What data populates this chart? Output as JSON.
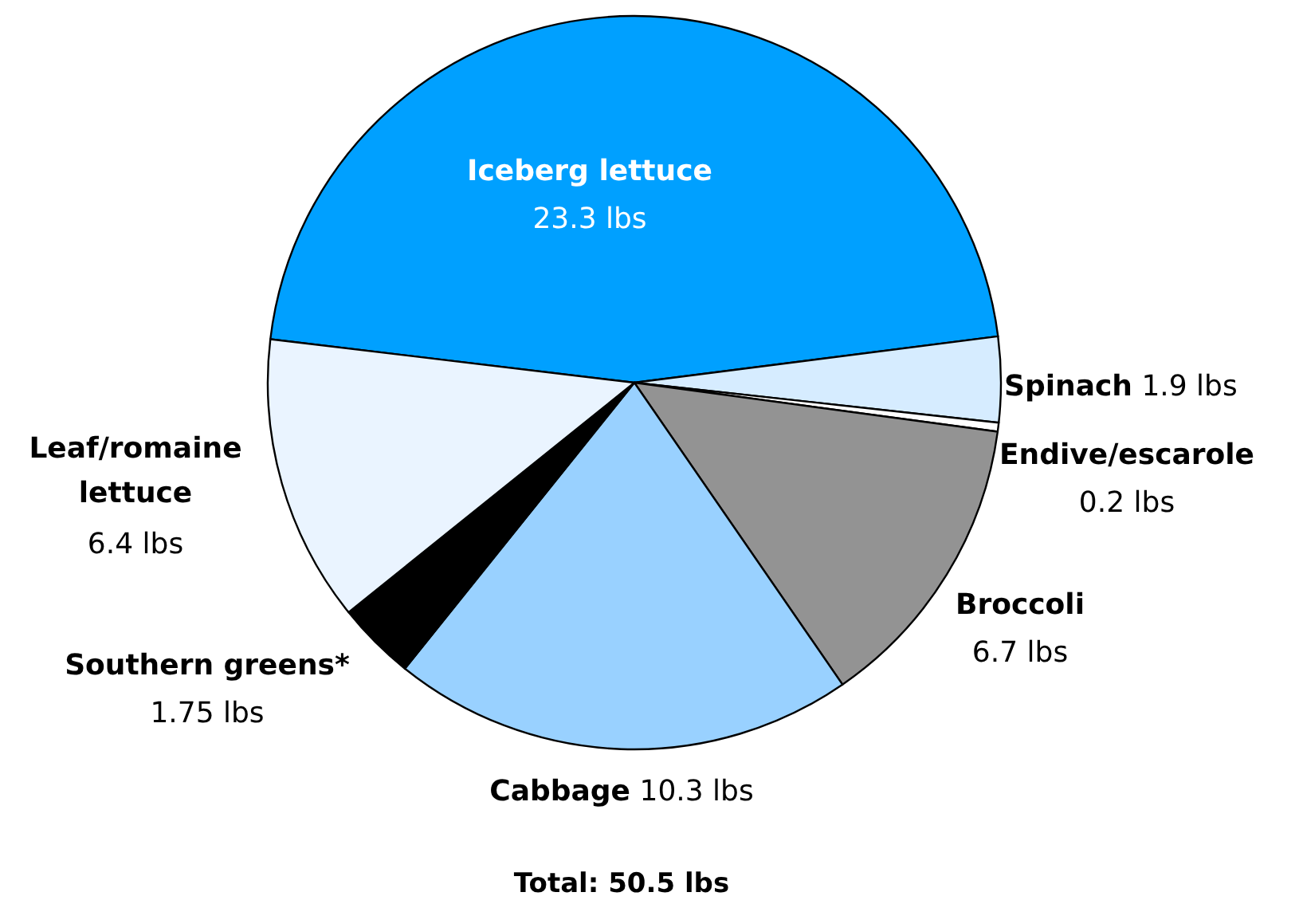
{
  "chart_data": {
    "type": "pie",
    "categories": [
      "Iceberg lettuce",
      "Spinach",
      "Endive/escarole",
      "Broccoli",
      "Cabbage",
      "Southern greens*",
      "Leaf/romaine lettuce"
    ],
    "values": [
      23.3,
      1.9,
      0.2,
      6.7,
      10.3,
      1.75,
      6.4
    ],
    "value_labels": [
      "23.3 lbs",
      "1.9 lbs",
      "0.2 lbs",
      "6.7 lbs",
      "10.3 lbs",
      "1.75 lbs",
      "6.4 lbs"
    ],
    "colors": [
      "#00a0ff",
      "#d6ecff",
      "#ffffff",
      "#939393",
      "#99d1ff",
      "#000000",
      "#eaf4ff"
    ],
    "annotations": [
      "Total: 50.5 lbs"
    ]
  }
}
